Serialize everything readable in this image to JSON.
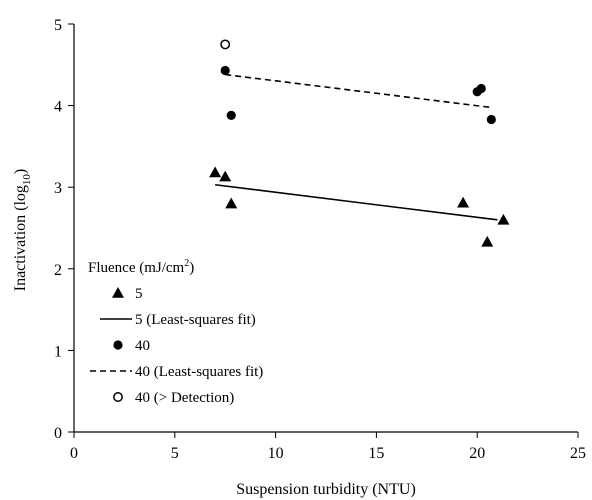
{
  "chart_data": {
    "type": "scatter",
    "xlabel": "Suspension turbidity (NTU)",
    "ylabel_main": "Inactivation (log",
    "ylabel_sub": "10",
    "ylabel_end": ")",
    "xlim": [
      0,
      25
    ],
    "ylim": [
      0,
      5
    ],
    "xticks": [
      "0",
      "5",
      "10",
      "15",
      "20",
      "25"
    ],
    "yticks": [
      "0",
      "1",
      "2",
      "3",
      "4",
      "5"
    ],
    "grid": false,
    "legend": {
      "title_main": "Fluence  (mJ/cm",
      "title_sup": "2",
      "title_end": ")",
      "placement": "bottom-left",
      "entries": [
        {
          "label": "5",
          "marker": "triangle-filled"
        },
        {
          "label": "5 (Least-squares fit)",
          "marker": "solid-line"
        },
        {
          "label": "40",
          "marker": "circle-filled"
        },
        {
          "label": "40 (Least-squares fit)",
          "marker": "dashed-line"
        },
        {
          "label": "40 (> Detection)",
          "marker": "circle-open"
        }
      ]
    },
    "series": [
      {
        "name": "5",
        "marker": "triangle-filled",
        "points": [
          [
            7.0,
            3.18
          ],
          [
            7.5,
            3.13
          ],
          [
            7.8,
            2.8
          ],
          [
            19.3,
            2.81
          ],
          [
            20.5,
            2.33
          ],
          [
            21.3,
            2.6
          ]
        ]
      },
      {
        "name": "5 (Least-squares fit)",
        "style": "solid",
        "points": [
          [
            7.0,
            3.03
          ],
          [
            21.0,
            2.6
          ]
        ]
      },
      {
        "name": "40",
        "marker": "circle-filled",
        "points": [
          [
            7.5,
            4.43
          ],
          [
            7.8,
            3.88
          ],
          [
            20.0,
            4.17
          ],
          [
            20.2,
            4.21
          ],
          [
            20.7,
            3.83
          ]
        ]
      },
      {
        "name": "40 (Least-squares fit)",
        "style": "dashed",
        "points": [
          [
            7.5,
            4.38
          ],
          [
            20.6,
            3.98
          ]
        ]
      },
      {
        "name": "40 (> Detection)",
        "marker": "circle-open",
        "points": [
          [
            7.5,
            4.75
          ]
        ]
      }
    ]
  }
}
